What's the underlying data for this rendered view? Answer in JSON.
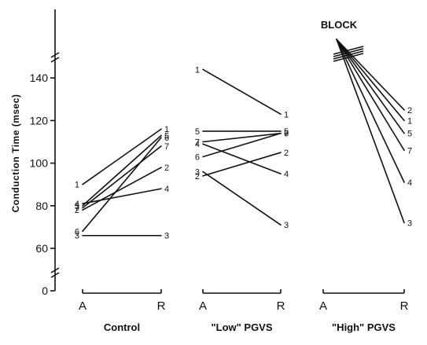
{
  "chart_data": {
    "type": "line",
    "ylabel": "Conduction Time (msec)",
    "y_ticks": [
      0,
      60,
      80,
      100,
      120,
      140
    ],
    "y_range": [
      60,
      148
    ],
    "axis_breaks": [
      "between 0 and 60",
      "above 140"
    ],
    "grid": false,
    "legend": "none",
    "x_categories": [
      "A",
      "R"
    ],
    "panels": [
      {
        "name": "Control",
        "series": [
          {
            "name": "1",
            "A": 90,
            "R": 116
          },
          {
            "name": "5",
            "A": 80,
            "R": 113
          },
          {
            "name": "7",
            "A": 79,
            "R": 108
          },
          {
            "name": "2",
            "A": 78,
            "R": 98
          },
          {
            "name": "4",
            "A": 81,
            "R": 88
          },
          {
            "name": "6",
            "A": 68,
            "R": 112
          },
          {
            "name": "3",
            "A": 66,
            "R": 66
          }
        ]
      },
      {
        "name": "\"Low\" PGVS",
        "series": [
          {
            "name": "1",
            "A": 144,
            "R": 123
          },
          {
            "name": "5",
            "A": 115,
            "R": 115
          },
          {
            "name": "7",
            "A": 110,
            "R": 114
          },
          {
            "name": "6",
            "A": 103,
            "R": 114
          },
          {
            "name": "2",
            "A": 94,
            "R": 105
          },
          {
            "name": "4",
            "A": 109,
            "R": 95
          },
          {
            "name": "3",
            "A": 96,
            "R": 71
          }
        ]
      },
      {
        "name": "\"High\" PGVS",
        "annotation": "BLOCK",
        "series": [
          {
            "name": "2",
            "A": "BLOCK",
            "R": 125
          },
          {
            "name": "1",
            "A": "BLOCK",
            "R": 120
          },
          {
            "name": "5",
            "A": "BLOCK",
            "R": 114
          },
          {
            "name": "7",
            "A": "BLOCK",
            "R": 106
          },
          {
            "name": "4",
            "A": "BLOCK",
            "R": 91
          },
          {
            "name": "3",
            "A": "BLOCK",
            "R": 72
          }
        ]
      }
    ]
  }
}
